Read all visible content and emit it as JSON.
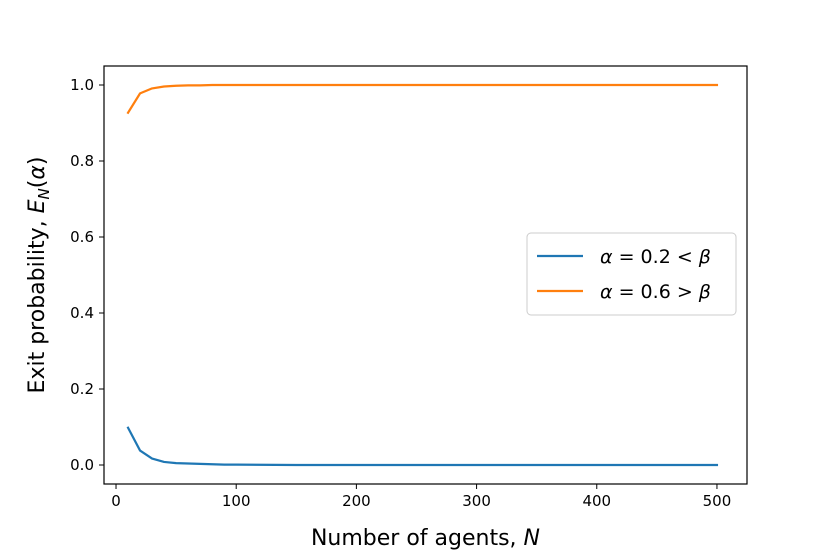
{
  "chart_data": {
    "type": "line",
    "xlabel": "Number of agents, N",
    "ylabel": "Exit probability, E_N(α)",
    "xlim": [
      -10,
      525
    ],
    "ylim": [
      -0.05,
      1.05
    ],
    "xticks": [
      0,
      100,
      200,
      300,
      400,
      500
    ],
    "yticks": [
      0.0,
      0.2,
      0.4,
      0.6,
      0.8,
      1.0
    ],
    "xtick_labels": [
      "0",
      "100",
      "200",
      "300",
      "400",
      "500"
    ],
    "ytick_labels": [
      "0.0",
      "0.2",
      "0.4",
      "0.6",
      "0.8",
      "1.0"
    ],
    "grid": false,
    "legend_position": "center-right",
    "series": [
      {
        "name": "α = 0.2 < β",
        "color": "#1f77b4",
        "x": [
          10,
          20,
          30,
          40,
          50,
          60,
          70,
          80,
          90,
          100,
          150,
          200,
          250,
          300,
          350,
          400,
          450,
          500
        ],
        "y": [
          0.098,
          0.038,
          0.017,
          0.008,
          0.005,
          0.004,
          0.003,
          0.002,
          0.001,
          0.001,
          0.0,
          0.0,
          0.0,
          0.0,
          0.0,
          0.0,
          0.0,
          0.0
        ]
      },
      {
        "name": "α = 0.6 > β",
        "color": "#ff7f0e",
        "x": [
          10,
          20,
          30,
          40,
          50,
          60,
          70,
          80,
          90,
          100,
          150,
          200,
          250,
          300,
          350,
          400,
          450,
          500
        ],
        "y": [
          0.927,
          0.978,
          0.991,
          0.996,
          0.998,
          0.999,
          0.999,
          1.0,
          1.0,
          1.0,
          1.0,
          1.0,
          1.0,
          1.0,
          1.0,
          1.0,
          1.0,
          1.0
        ]
      }
    ]
  }
}
